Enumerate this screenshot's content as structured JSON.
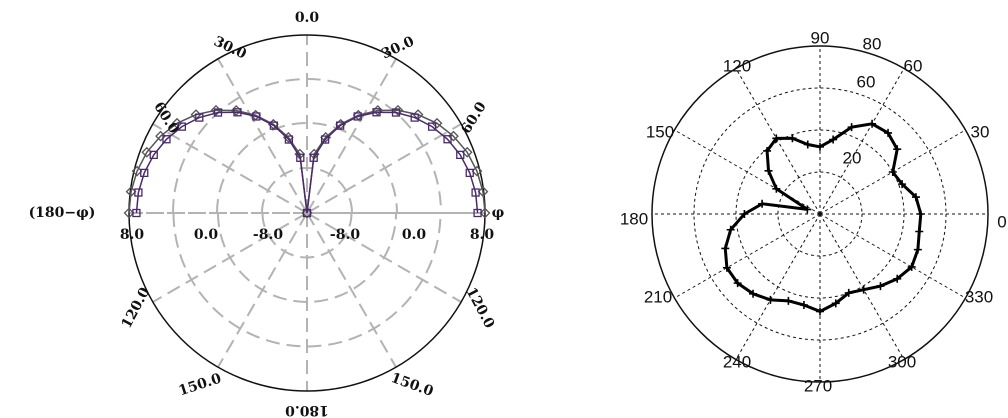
{
  "chart_data": [
    {
      "type": "polar",
      "title": "",
      "angle_labels": [
        "0.0",
        "30.0",
        "60.0",
        "120.0",
        "150.0",
        "180.0",
        "150.0",
        "120.0",
        "60.0",
        "30.0"
      ],
      "radial_ticks_left": [
        "8.0",
        "0.0",
        "-8.0"
      ],
      "radial_ticks_right": [
        "-8.0",
        "0.0",
        "8.0"
      ],
      "side_label_left": "(180−φ)",
      "side_label_right": "φ",
      "radial_range": [
        -16,
        8
      ],
      "series": [
        {
          "marker": "diamond",
          "color": "#555555",
          "r": [
            8.0,
            7.9,
            7.6,
            7.1,
            6.3,
            5.3,
            4.0,
            2.5,
            0.8,
            -1.1,
            -3.2,
            -5.5,
            -8.0,
            -16.0,
            -8.0,
            -5.5,
            -3.2,
            -1.1,
            0.8,
            2.5,
            4.0,
            5.3,
            6.3,
            7.1,
            7.6,
            7.9,
            8.0
          ]
        },
        {
          "marker": "square",
          "color": "#4a2a6a",
          "r": [
            7.0,
            6.9,
            6.6,
            6.1,
            5.4,
            4.5,
            3.4,
            2.1,
            0.5,
            -1.3,
            -3.4,
            -5.8,
            -8.5,
            -16.0,
            -8.5,
            -5.8,
            -3.4,
            -1.3,
            0.5,
            2.1,
            3.4,
            4.5,
            5.4,
            6.1,
            6.6,
            6.9,
            7.0
          ]
        }
      ]
    },
    {
      "type": "polar",
      "title": "",
      "angle_labels": [
        "0",
        "30",
        "60",
        "90",
        "120",
        "150",
        "180",
        "210",
        "240",
        "270",
        "300",
        "330"
      ],
      "radial_ticks": [
        "20",
        "60",
        "80"
      ],
      "radial_range": [
        0,
        100
      ],
      "series": [
        {
          "marker": "plus",
          "color": "#000000",
          "r": [
            60,
            58,
            52,
            50,
            60,
            63,
            62,
            55,
            45,
            40,
            42,
            48,
            52,
            49,
            40,
            30,
            8,
            35,
            45,
            54,
            60,
            64,
            64,
            62,
            59,
            55,
            55,
            58,
            54,
            50,
            52,
            56,
            60,
            63,
            62,
            60
          ]
        }
      ]
    }
  ]
}
